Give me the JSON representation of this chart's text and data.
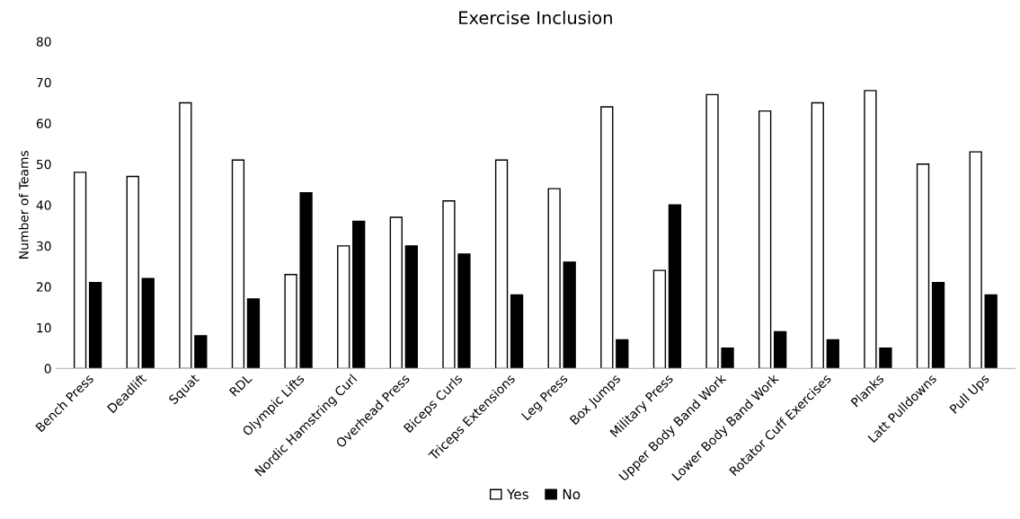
{
  "chart_data": {
    "type": "bar",
    "title": "Exercise Inclusion",
    "ylabel": "Number of Teams",
    "categories": [
      "Bench Press",
      "Deadlift",
      "Squat",
      "RDL",
      "Olympic Lifts",
      "Nordic Hamstring Curl",
      "Overhead Press",
      "Biceps Curls",
      "Triceps Extensions",
      "Leg Press",
      "Box Jumps",
      "Military Press",
      "Upper Body Band Work",
      "Lower Body Band Work",
      "Rotator Cuff Exercises",
      "Planks",
      "Latt Pulldowns",
      "Pull Ups"
    ],
    "series": [
      {
        "name": "Yes",
        "color": "#ffffff",
        "values": [
          48,
          47,
          65,
          51,
          23,
          30,
          37,
          41,
          51,
          44,
          64,
          24,
          67,
          63,
          65,
          68,
          50,
          53
        ]
      },
      {
        "name": "No",
        "color": "#000000",
        "values": [
          21,
          22,
          8,
          17,
          43,
          36,
          30,
          28,
          18,
          26,
          7,
          40,
          5,
          9,
          7,
          5,
          21,
          18
        ]
      }
    ],
    "ylim": [
      0,
      80
    ],
    "yticks": [
      0,
      10,
      20,
      30,
      40,
      50,
      60,
      70,
      80
    ],
    "grid": false,
    "legend": "bottom"
  }
}
